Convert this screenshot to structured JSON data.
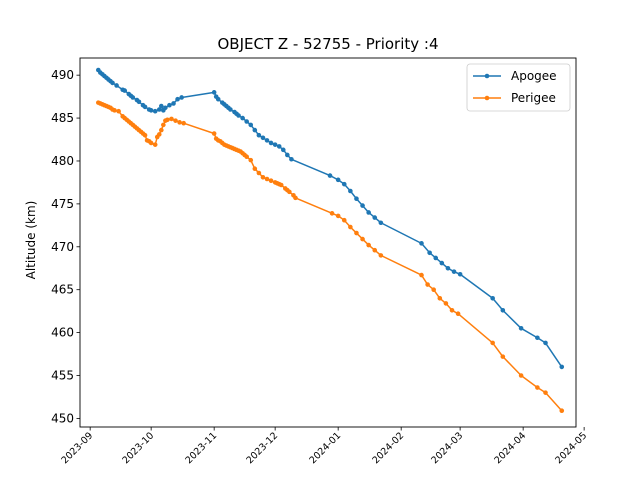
{
  "chart_data": {
    "type": "line",
    "title": "OBJECT Z - 52755 - Priority :4",
    "xlabel": "",
    "ylabel": "Altitude (km)",
    "xlim": [
      "2023-08-27",
      "2024-04-27"
    ],
    "ylim": [
      449,
      492
    ],
    "grid": false,
    "legend_position": "top-right",
    "x_ticks": [
      "2023-09",
      "2023-10",
      "2023-11",
      "2023-12",
      "2024-01",
      "2024-02",
      "2024-03",
      "2024-04",
      "2024-05"
    ],
    "y_ticks": [
      "450",
      "455",
      "460",
      "465",
      "470",
      "475",
      "480",
      "485",
      "490"
    ],
    "series": [
      {
        "name": "Apogee",
        "color": "#1f77b4",
        "points": [
          [
            "2023-09-05",
            490.6
          ],
          [
            "2023-09-06",
            490.3
          ],
          [
            "2023-09-07",
            490.1
          ],
          [
            "2023-09-08",
            489.9
          ],
          [
            "2023-09-09",
            489.7
          ],
          [
            "2023-09-10",
            489.5
          ],
          [
            "2023-09-11",
            489.3
          ],
          [
            "2023-09-12",
            489.1
          ],
          [
            "2023-09-14",
            488.8
          ],
          [
            "2023-09-17",
            488.3
          ],
          [
            "2023-09-18",
            488.2
          ],
          [
            "2023-09-20",
            487.8
          ],
          [
            "2023-09-21",
            487.6
          ],
          [
            "2023-09-22",
            487.4
          ],
          [
            "2023-09-24",
            487.1
          ],
          [
            "2023-09-25",
            486.9
          ],
          [
            "2023-09-27",
            486.5
          ],
          [
            "2023-09-28",
            486.3
          ],
          [
            "2023-09-30",
            486.0
          ],
          [
            "2023-10-01",
            485.9
          ],
          [
            "2023-10-03",
            485.8
          ],
          [
            "2023-10-05",
            486.0
          ],
          [
            "2023-10-06",
            486.4
          ],
          [
            "2023-10-07",
            485.9
          ],
          [
            "2023-10-08",
            486.2
          ],
          [
            "2023-10-10",
            486.5
          ],
          [
            "2023-10-12",
            486.7
          ],
          [
            "2023-10-14",
            487.2
          ],
          [
            "2023-10-16",
            487.4
          ],
          [
            "2023-11-01",
            488.0
          ],
          [
            "2023-11-02",
            487.5
          ],
          [
            "2023-11-03",
            487.2
          ],
          [
            "2023-11-05",
            486.8
          ],
          [
            "2023-11-06",
            486.6
          ],
          [
            "2023-11-07",
            486.4
          ],
          [
            "2023-11-08",
            486.2
          ],
          [
            "2023-11-09",
            486.0
          ],
          [
            "2023-11-11",
            485.7
          ],
          [
            "2023-11-12",
            485.5
          ],
          [
            "2023-11-13",
            485.3
          ],
          [
            "2023-11-15",
            485.0
          ],
          [
            "2023-11-17",
            484.6
          ],
          [
            "2023-11-19",
            484.2
          ],
          [
            "2023-11-21",
            483.6
          ],
          [
            "2023-11-23",
            483.0
          ],
          [
            "2023-11-25",
            482.7
          ],
          [
            "2023-11-27",
            482.4
          ],
          [
            "2023-11-29",
            482.1
          ],
          [
            "2023-12-01",
            481.9
          ],
          [
            "2023-12-03",
            481.7
          ],
          [
            "2023-12-05",
            481.3
          ],
          [
            "2023-12-07",
            480.7
          ],
          [
            "2023-12-09",
            480.2
          ],
          [
            "2023-12-28",
            478.3
          ],
          [
            "2024-01-01",
            477.8
          ],
          [
            "2024-01-04",
            477.3
          ],
          [
            "2024-01-07",
            476.5
          ],
          [
            "2024-01-10",
            475.6
          ],
          [
            "2024-01-13",
            474.8
          ],
          [
            "2024-01-16",
            474.0
          ],
          [
            "2024-01-19",
            473.4
          ],
          [
            "2024-01-22",
            472.8
          ],
          [
            "2024-02-11",
            470.4
          ],
          [
            "2024-02-15",
            469.3
          ],
          [
            "2024-02-18",
            468.7
          ],
          [
            "2024-02-21",
            468.1
          ],
          [
            "2024-02-24",
            467.5
          ],
          [
            "2024-02-27",
            467.1
          ],
          [
            "2024-03-01",
            466.8
          ],
          [
            "2024-03-17",
            464.0
          ],
          [
            "2024-03-22",
            462.6
          ],
          [
            "2024-03-31",
            460.5
          ],
          [
            "2024-04-08",
            459.4
          ],
          [
            "2024-04-12",
            458.8
          ],
          [
            "2024-04-20",
            456.0
          ]
        ]
      },
      {
        "name": "Perigee",
        "color": "#ff7f0e",
        "points": [
          [
            "2023-09-05",
            486.8
          ],
          [
            "2023-09-06",
            486.7
          ],
          [
            "2023-09-07",
            486.6
          ],
          [
            "2023-09-08",
            486.5
          ],
          [
            "2023-09-09",
            486.4
          ],
          [
            "2023-09-10",
            486.3
          ],
          [
            "2023-09-11",
            486.2
          ],
          [
            "2023-09-12",
            486.0
          ],
          [
            "2023-09-13",
            485.9
          ],
          [
            "2023-09-15",
            485.8
          ],
          [
            "2023-09-17",
            485.2
          ],
          [
            "2023-09-18",
            485.0
          ],
          [
            "2023-09-19",
            484.8
          ],
          [
            "2023-09-20",
            484.6
          ],
          [
            "2023-09-21",
            484.4
          ],
          [
            "2023-09-22",
            484.2
          ],
          [
            "2023-09-23",
            484.0
          ],
          [
            "2023-09-24",
            483.8
          ],
          [
            "2023-09-25",
            483.6
          ],
          [
            "2023-09-26",
            483.4
          ],
          [
            "2023-09-27",
            483.2
          ],
          [
            "2023-09-28",
            483.0
          ],
          [
            "2023-09-29",
            482.4
          ],
          [
            "2023-09-30",
            482.3
          ],
          [
            "2023-10-01",
            482.1
          ],
          [
            "2023-10-03",
            481.9
          ],
          [
            "2023-10-04",
            482.8
          ],
          [
            "2023-10-05",
            483.1
          ],
          [
            "2023-10-06",
            483.6
          ],
          [
            "2023-10-07",
            484.2
          ],
          [
            "2023-10-08",
            484.7
          ],
          [
            "2023-10-09",
            484.8
          ],
          [
            "2023-10-11",
            484.9
          ],
          [
            "2023-10-13",
            484.7
          ],
          [
            "2023-10-15",
            484.5
          ],
          [
            "2023-10-17",
            484.4
          ],
          [
            "2023-11-01",
            483.2
          ],
          [
            "2023-11-02",
            482.6
          ],
          [
            "2023-11-03",
            482.4
          ],
          [
            "2023-11-04",
            482.3
          ],
          [
            "2023-11-05",
            482.1
          ],
          [
            "2023-11-06",
            481.9
          ],
          [
            "2023-11-07",
            481.8
          ],
          [
            "2023-11-08",
            481.7
          ],
          [
            "2023-11-09",
            481.6
          ],
          [
            "2023-11-10",
            481.5
          ],
          [
            "2023-11-11",
            481.4
          ],
          [
            "2023-11-12",
            481.3
          ],
          [
            "2023-11-13",
            481.2
          ],
          [
            "2023-11-14",
            481.1
          ],
          [
            "2023-11-15",
            480.9
          ],
          [
            "2023-11-16",
            480.7
          ],
          [
            "2023-11-17",
            480.5
          ],
          [
            "2023-11-19",
            480.1
          ],
          [
            "2023-11-21",
            479.1
          ],
          [
            "2023-11-23",
            478.6
          ],
          [
            "2023-11-25",
            478.1
          ],
          [
            "2023-11-27",
            477.9
          ],
          [
            "2023-11-29",
            477.7
          ],
          [
            "2023-12-01",
            477.5
          ],
          [
            "2023-12-02",
            477.4
          ],
          [
            "2023-12-03",
            477.3
          ],
          [
            "2023-12-04",
            477.2
          ],
          [
            "2023-12-06",
            476.8
          ],
          [
            "2023-12-07",
            476.6
          ],
          [
            "2023-12-08",
            476.4
          ],
          [
            "2023-12-10",
            476.0
          ],
          [
            "2023-12-11",
            475.7
          ],
          [
            "2023-12-29",
            473.9
          ],
          [
            "2024-01-01",
            473.6
          ],
          [
            "2024-01-04",
            473.1
          ],
          [
            "2024-01-07",
            472.3
          ],
          [
            "2024-01-10",
            471.6
          ],
          [
            "2024-01-13",
            470.9
          ],
          [
            "2024-01-16",
            470.2
          ],
          [
            "2024-01-19",
            469.6
          ],
          [
            "2024-01-22",
            469.0
          ],
          [
            "2024-02-11",
            466.7
          ],
          [
            "2024-02-14",
            465.6
          ],
          [
            "2024-02-17",
            465.0
          ],
          [
            "2024-02-20",
            464.0
          ],
          [
            "2024-02-23",
            463.4
          ],
          [
            "2024-02-26",
            462.6
          ],
          [
            "2024-02-29",
            462.2
          ],
          [
            "2024-03-17",
            458.8
          ],
          [
            "2024-03-22",
            457.2
          ],
          [
            "2024-03-31",
            455.0
          ],
          [
            "2024-04-08",
            453.6
          ],
          [
            "2024-04-12",
            453.0
          ],
          [
            "2024-04-20",
            450.9
          ]
        ]
      }
    ]
  }
}
